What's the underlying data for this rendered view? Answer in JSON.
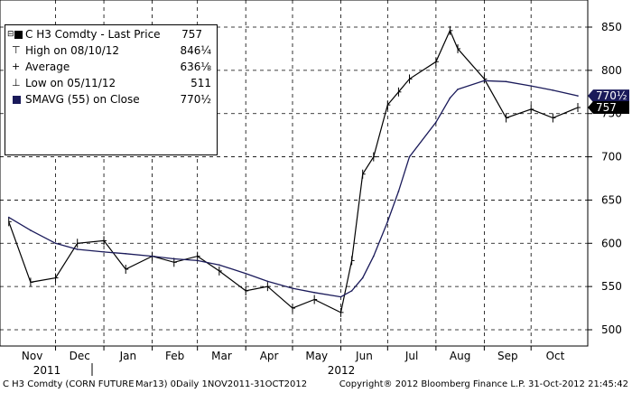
{
  "legend": {
    "title": "C H3 Comdty - Last Price",
    "title_value": "757",
    "high_label": "High on 08/10/12",
    "high_value": "846¼",
    "avg_label": "Average",
    "avg_value": "636⅛",
    "low_label": "Low on 05/11/12",
    "low_value": "511",
    "sma_label": "SMAVG (55) on Close",
    "sma_value": "770½"
  },
  "footer": {
    "left": "C H3 Comdty (CORN FUTURE",
    "middle": "Mar13) 0Daily 1NOV2011-31OCT2012",
    "right": "Copyright® 2012 Bloomberg Finance L.P. 31-Oct-2012 21:45:42"
  },
  "colors": {
    "price": "#000000",
    "sma": "#1a1a5a",
    "tag_dark": "#000000",
    "tag_navy": "#1a1a5a"
  },
  "chart_data": {
    "type": "line",
    "title": "C H3 Comdty - Last Price",
    "xlabel": "",
    "ylabel": "",
    "ylim": [
      495,
      865
    ],
    "yticks": [
      500,
      550,
      600,
      650,
      700,
      750,
      800,
      850
    ],
    "grid": true,
    "legend": "top-left",
    "x": [
      "2011-11-01",
      "2011-11-15",
      "2011-12-01",
      "2011-12-15",
      "2012-01-01",
      "2012-01-15",
      "2012-02-01",
      "2012-02-15",
      "2012-03-01",
      "2012-03-15",
      "2012-04-01",
      "2012-04-15",
      "2012-05-01",
      "2012-05-15",
      "2012-06-01",
      "2012-06-08",
      "2012-06-15",
      "2012-06-22",
      "2012-07-01",
      "2012-07-08",
      "2012-07-15",
      "2012-08-01",
      "2012-08-10",
      "2012-08-15",
      "2012-09-01",
      "2012-09-15",
      "2012-10-01",
      "2012-10-15",
      "2012-10-31"
    ],
    "month_labels": [
      "Nov",
      "Dec",
      "Jan",
      "Feb",
      "Mar",
      "Apr",
      "May",
      "Jun",
      "Jul",
      "Aug",
      "Sep",
      "Oct"
    ],
    "year_labels": [
      "2011",
      "2012"
    ],
    "series": [
      {
        "name": "C H3 Comdty - Last Price",
        "values": [
          625,
          555,
          560,
          600,
          603,
          570,
          585,
          578,
          585,
          568,
          545,
          550,
          525,
          535,
          520,
          580,
          680,
          700,
          760,
          775,
          790,
          810,
          846,
          825,
          790,
          745,
          755,
          745,
          757
        ]
      },
      {
        "name": "SMAVG (55) on Close",
        "values": [
          630,
          615,
          600,
          593,
          590,
          588,
          585,
          582,
          580,
          575,
          565,
          556,
          548,
          543,
          538,
          545,
          560,
          585,
          625,
          660,
          700,
          740,
          768,
          778,
          788,
          787,
          782,
          777,
          770.5
        ]
      }
    ],
    "last_price_tag": "757",
    "sma_tag": "770½",
    "high": 846.25,
    "average": 636.125,
    "low": 511
  }
}
